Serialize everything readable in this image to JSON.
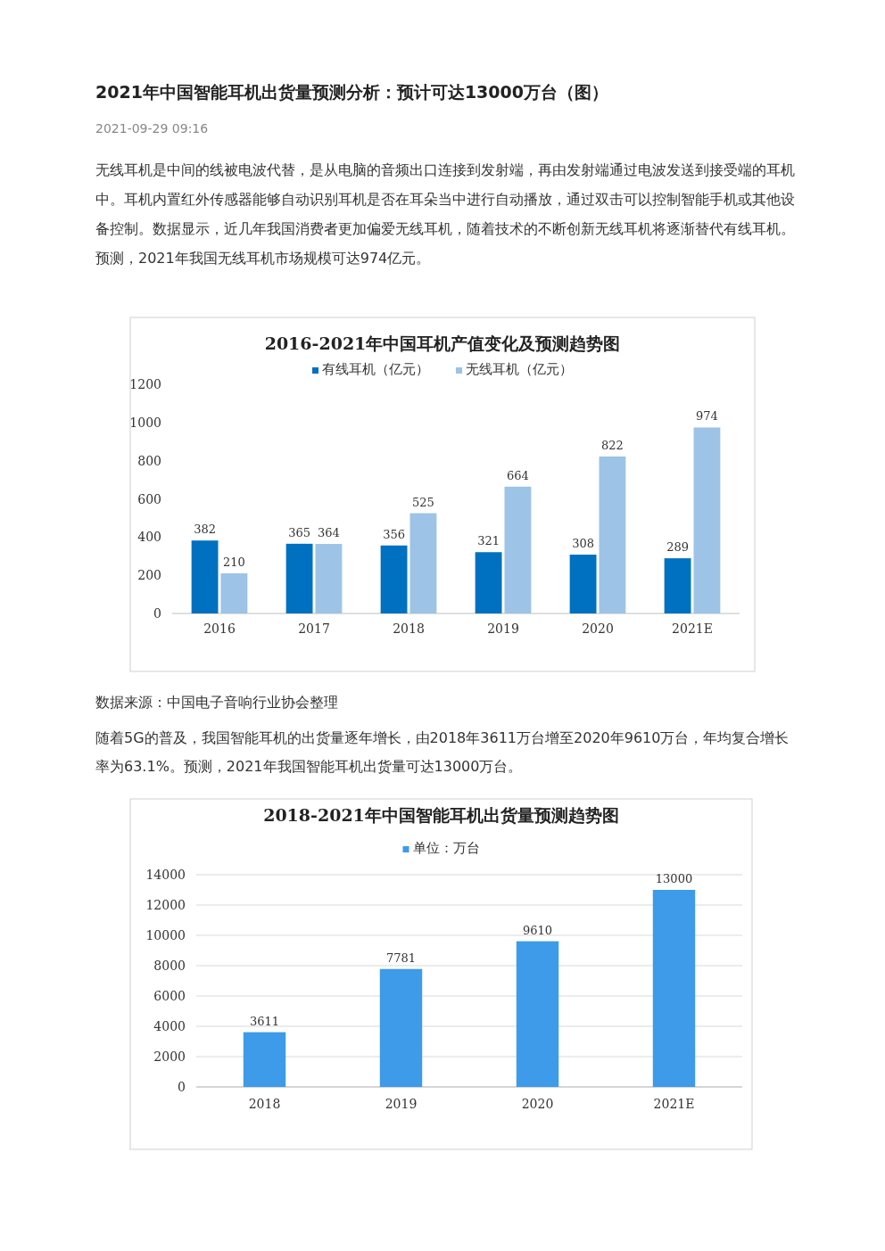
{
  "chart_data": [
    {
      "type": "bar",
      "title": "2016-2021年中国耳机产值变化及预测趋势图",
      "annotations": [
        "2021年中国智能耳机出货量预测分析：预计可达13000万台（图）",
        "2021-09-29 09:16",
        "无线耳机是中间的线被电波代替，是从电脑的音频出口连接到发射端，再由发射端通过电波发送到接受端的耳机中。耳机内置红外传感器能够自动识别耳机是否在耳朵当中进行自动播放，通过双击可以控制智能手机或其他设备控制。数据显示，近几年我国消费者更加偏爱无线耳机，随着技术的不断创新无线耳机将逐渐替代有线耳机。预测，2021年我国无线耳机市场规模可达974亿元。",
        "数据来源：中国电子音响行业协会整理"
      ],
      "categories": [
        "2016",
        "2017",
        "2018",
        "2019",
        "2020",
        "2021E"
      ],
      "series": [
        {
          "name": "有线耳机（亿元）",
          "color": "#0070c0",
          "values": [
            382,
            365,
            356,
            321,
            308,
            289
          ]
        },
        {
          "name": "无线耳机（亿元）",
          "color": "#9dc3e6",
          "values": [
            210,
            364,
            525,
            664,
            822,
            974
          ]
        }
      ],
      "ylim": [
        0,
        1200
      ],
      "yticks": [
        0,
        200,
        400,
        600,
        800,
        1000,
        1200
      ],
      "data_labels": true,
      "legend": "top",
      "grid": false
    },
    {
      "type": "bar",
      "title": "2018-2021年中国智能耳机出货量预测趋势图",
      "annotations": [
        "随着5G的普及，我国智能耳机的出货量逐年增长，由2018年3611万台增至2020年9610万台，年均复合增长率为63.1%。预测，2021年我国智能耳机出货量可达13000万台。"
      ],
      "categories": [
        "2018",
        "2019",
        "2020",
        "2021E"
      ],
      "series": [
        {
          "name": "单位：万台",
          "color": "#3d9be9",
          "values": [
            3611,
            7781,
            9610,
            13000
          ]
        }
      ],
      "ylim": [
        0,
        14000
      ],
      "yticks": [
        0,
        2000,
        4000,
        6000,
        8000,
        10000,
        12000,
        14000
      ],
      "data_labels": true,
      "legend": "top",
      "grid": "y"
    }
  ]
}
